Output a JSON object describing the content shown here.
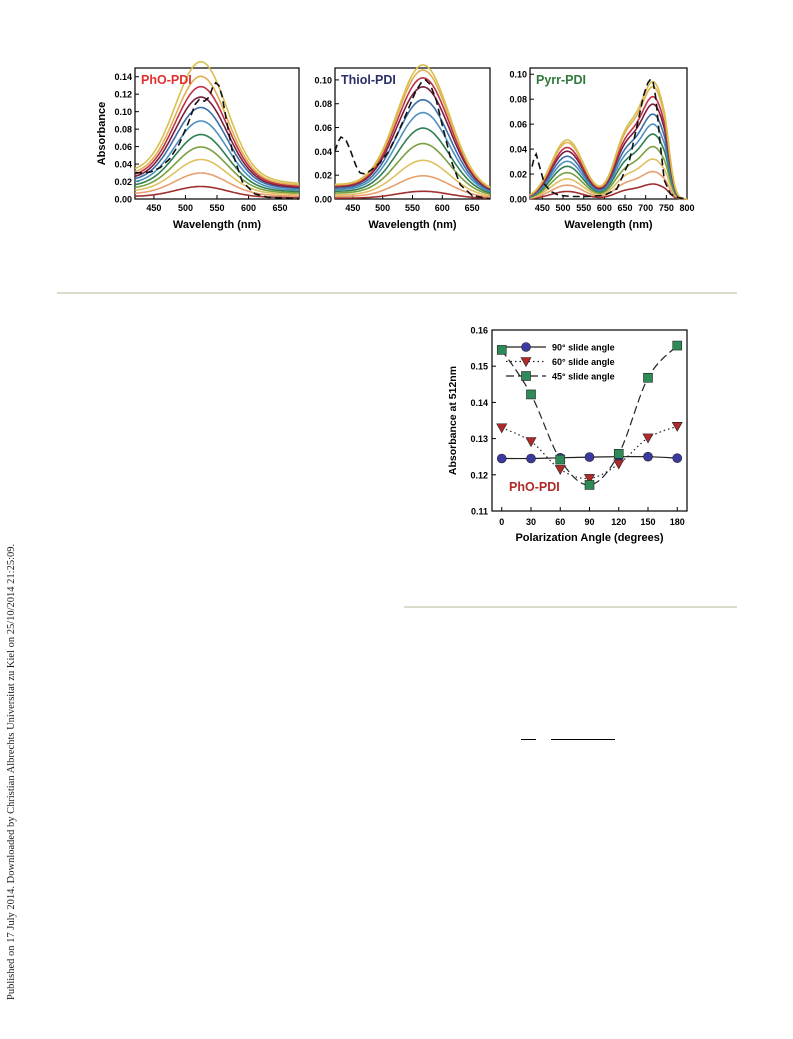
{
  "side_note": "Published on 17 July 2014. Downloaded by Christian Albrechts Universitat zu Kiel on 25/10/2014 21:25:09.",
  "chart_data": [
    {
      "type": "line",
      "title": "PhO-PDI",
      "title_color": "#e03030",
      "xlabel": "Wavelength (nm)",
      "ylabel": "Absorbance",
      "xlim": [
        420,
        680
      ],
      "ylim": [
        0,
        0.15
      ],
      "xticks": [
        450,
        500,
        550,
        600,
        650
      ],
      "yticks": [
        "0.00",
        "0.02",
        "0.04",
        "0.06",
        "0.08",
        "0.10",
        "0.12",
        "0.14"
      ],
      "profile": {
        "type": "gauss",
        "peak": 525,
        "width": 58,
        "base_left": 0.03,
        "base_right": 0.018
      },
      "peak_values": [
        0.012,
        0.025,
        0.038,
        0.05,
        0.062,
        0.075,
        0.088,
        0.098,
        0.108,
        0.118,
        0.132
      ],
      "colors": [
        "#a03030",
        "#e8a070",
        "#e0c060",
        "#7aa040",
        "#2e8050",
        "#5090c0",
        "#3a6fa8",
        "#7a1f3a",
        "#c03048",
        "#e0b050",
        "#d8c050"
      ],
      "dashed": {
        "x": [
          420,
          435,
          445,
          460,
          475,
          490,
          505,
          515,
          522,
          530,
          538,
          543,
          548,
          553,
          558,
          565,
          575,
          590,
          610,
          630,
          660,
          680
        ],
        "y": [
          0.03,
          0.03,
          0.031,
          0.036,
          0.046,
          0.063,
          0.088,
          0.108,
          0.114,
          0.112,
          0.117,
          0.128,
          0.133,
          0.13,
          0.118,
          0.09,
          0.052,
          0.02,
          0.006,
          0.002,
          0.001,
          0.0
        ]
      }
    },
    {
      "type": "line",
      "title": "Thiol-PDI",
      "title_color": "#2a2f6a",
      "xlabel": "Wavelength (nm)",
      "ylabel": "",
      "xlim": [
        420,
        680
      ],
      "ylim": [
        0,
        0.11
      ],
      "xticks": [
        450,
        500,
        550,
        600,
        650
      ],
      "yticks": [
        "0.00",
        "0.02",
        "0.04",
        "0.06",
        "0.08",
        "0.10"
      ],
      "profile": {
        "type": "gauss",
        "peak": 568,
        "width": 62,
        "base_left": 0.012,
        "base_right": 0.006
      },
      "peak_values": [
        0.006,
        0.018,
        0.03,
        0.043,
        0.055,
        0.067,
        0.077,
        0.087,
        0.094,
        0.1,
        0.104
      ],
      "colors": [
        "#a03030",
        "#e8a070",
        "#e0c060",
        "#7aa040",
        "#2e8050",
        "#5090c0",
        "#3a6fa8",
        "#7a1f3a",
        "#c03048",
        "#e0b050",
        "#d8c050"
      ],
      "dashed": {
        "x": [
          420,
          425,
          430,
          438,
          445,
          455,
          462,
          470,
          480,
          495,
          510,
          525,
          540,
          555,
          565,
          572,
          580,
          590,
          600,
          615,
          630,
          650,
          680
        ],
        "y": [
          0.04,
          0.048,
          0.052,
          0.05,
          0.042,
          0.028,
          0.022,
          0.021,
          0.024,
          0.03,
          0.04,
          0.055,
          0.072,
          0.09,
          0.098,
          0.1,
          0.096,
          0.083,
          0.062,
          0.032,
          0.012,
          0.003,
          0.0
        ]
      }
    },
    {
      "type": "line",
      "title": "Pyrr-PDI",
      "title_color": "#2f7a3a",
      "xlabel": "Wavelength (nm)",
      "ylabel": "",
      "xlim": [
        420,
        800
      ],
      "ylim": [
        0,
        0.105
      ],
      "xticks": [
        450,
        500,
        550,
        600,
        650,
        700,
        750,
        800
      ],
      "yticks": [
        "0.00",
        "0.02",
        "0.04",
        "0.06",
        "0.08",
        "0.10"
      ],
      "profile": {
        "type": "pyrr",
        "peak": 715
      },
      "peak_values": [
        0.012,
        0.022,
        0.032,
        0.042,
        0.052,
        0.06,
        0.068,
        0.076,
        0.082,
        0.09,
        0.094
      ],
      "colors": [
        "#a03030",
        "#e8a070",
        "#e0c060",
        "#7aa040",
        "#2e8050",
        "#5090c0",
        "#3a6fa8",
        "#7a1f3a",
        "#c03048",
        "#e0b050",
        "#d8c050"
      ],
      "dashed": {
        "x": [
          425,
          430,
          435,
          445,
          455,
          470,
          490,
          520,
          560,
          600,
          630,
          660,
          680,
          695,
          705,
          712,
          718,
          725,
          735,
          745,
          760,
          780,
          800
        ],
        "y": [
          0.026,
          0.033,
          0.036,
          0.024,
          0.012,
          0.006,
          0.003,
          0.002,
          0.002,
          0.003,
          0.008,
          0.03,
          0.06,
          0.083,
          0.093,
          0.096,
          0.094,
          0.08,
          0.045,
          0.015,
          0.004,
          0.001,
          0.0
        ]
      }
    },
    {
      "type": "scatter",
      "title": "PhO-PDI",
      "title_color": "#b02a2a",
      "xlabel": "Polarization Angle (degrees)",
      "ylabel": "Absorbance at 512nm",
      "xlim": [
        -10,
        190
      ],
      "ylim": [
        0.11,
        0.16
      ],
      "xticks": [
        0,
        30,
        60,
        90,
        120,
        150,
        180
      ],
      "yticks": [
        "0.11",
        "0.12",
        "0.13",
        "0.14",
        "0.15",
        "0.16"
      ],
      "x": [
        0,
        30,
        60,
        90,
        120,
        150,
        180
      ],
      "series": [
        {
          "name": "90° slide angle",
          "marker": "circle",
          "color": "#3a3aa0",
          "line": "solid",
          "values": [
            0.1245,
            0.1245,
            0.1247,
            0.1249,
            0.125,
            0.125,
            0.1246
          ]
        },
        {
          "name": "60° slide angle",
          "marker": "triangle",
          "color": "#b02a2a",
          "line": "dotted",
          "values": [
            0.133,
            0.1292,
            0.1215,
            0.119,
            0.123,
            0.1302,
            0.1334
          ]
        },
        {
          "name": "45° slide angle",
          "marker": "square",
          "color": "#2e8b57",
          "line": "dashed",
          "values": [
            0.1545,
            0.1422,
            0.1242,
            0.1172,
            0.1258,
            0.1468,
            0.1557
          ]
        }
      ]
    }
  ]
}
